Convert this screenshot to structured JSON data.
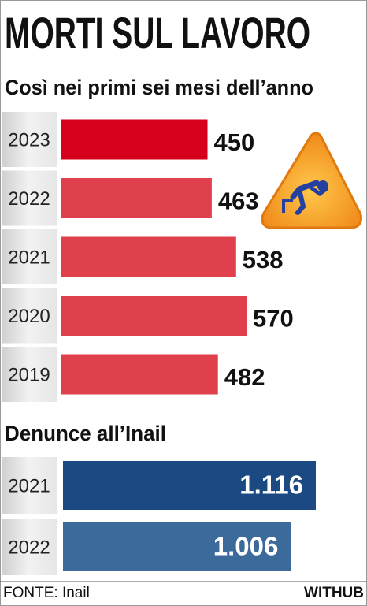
{
  "chart_data": [
    {
      "type": "bar",
      "title": "MORTI SUL LAVORO",
      "subtitle": "Così nei primi sei mesi dell’anno",
      "categories": [
        "2023",
        "2022",
        "2021",
        "2020",
        "2019"
      ],
      "values": [
        450,
        463,
        538,
        570,
        482
      ],
      "colors": [
        "#d5001c",
        "#e0404b",
        "#e0404b",
        "#e0404b",
        "#e0404b"
      ]
    },
    {
      "type": "bar",
      "title": "Denunce all’Inail",
      "categories": [
        "2021",
        "2022"
      ],
      "values": [
        1116,
        1006
      ],
      "value_labels": [
        "1.116",
        "1.006"
      ],
      "colors": [
        "#1b4a82",
        "#3c6a9b"
      ]
    }
  ],
  "footer": {
    "source": "FONTE: Inail",
    "brand": "WITHUB"
  }
}
